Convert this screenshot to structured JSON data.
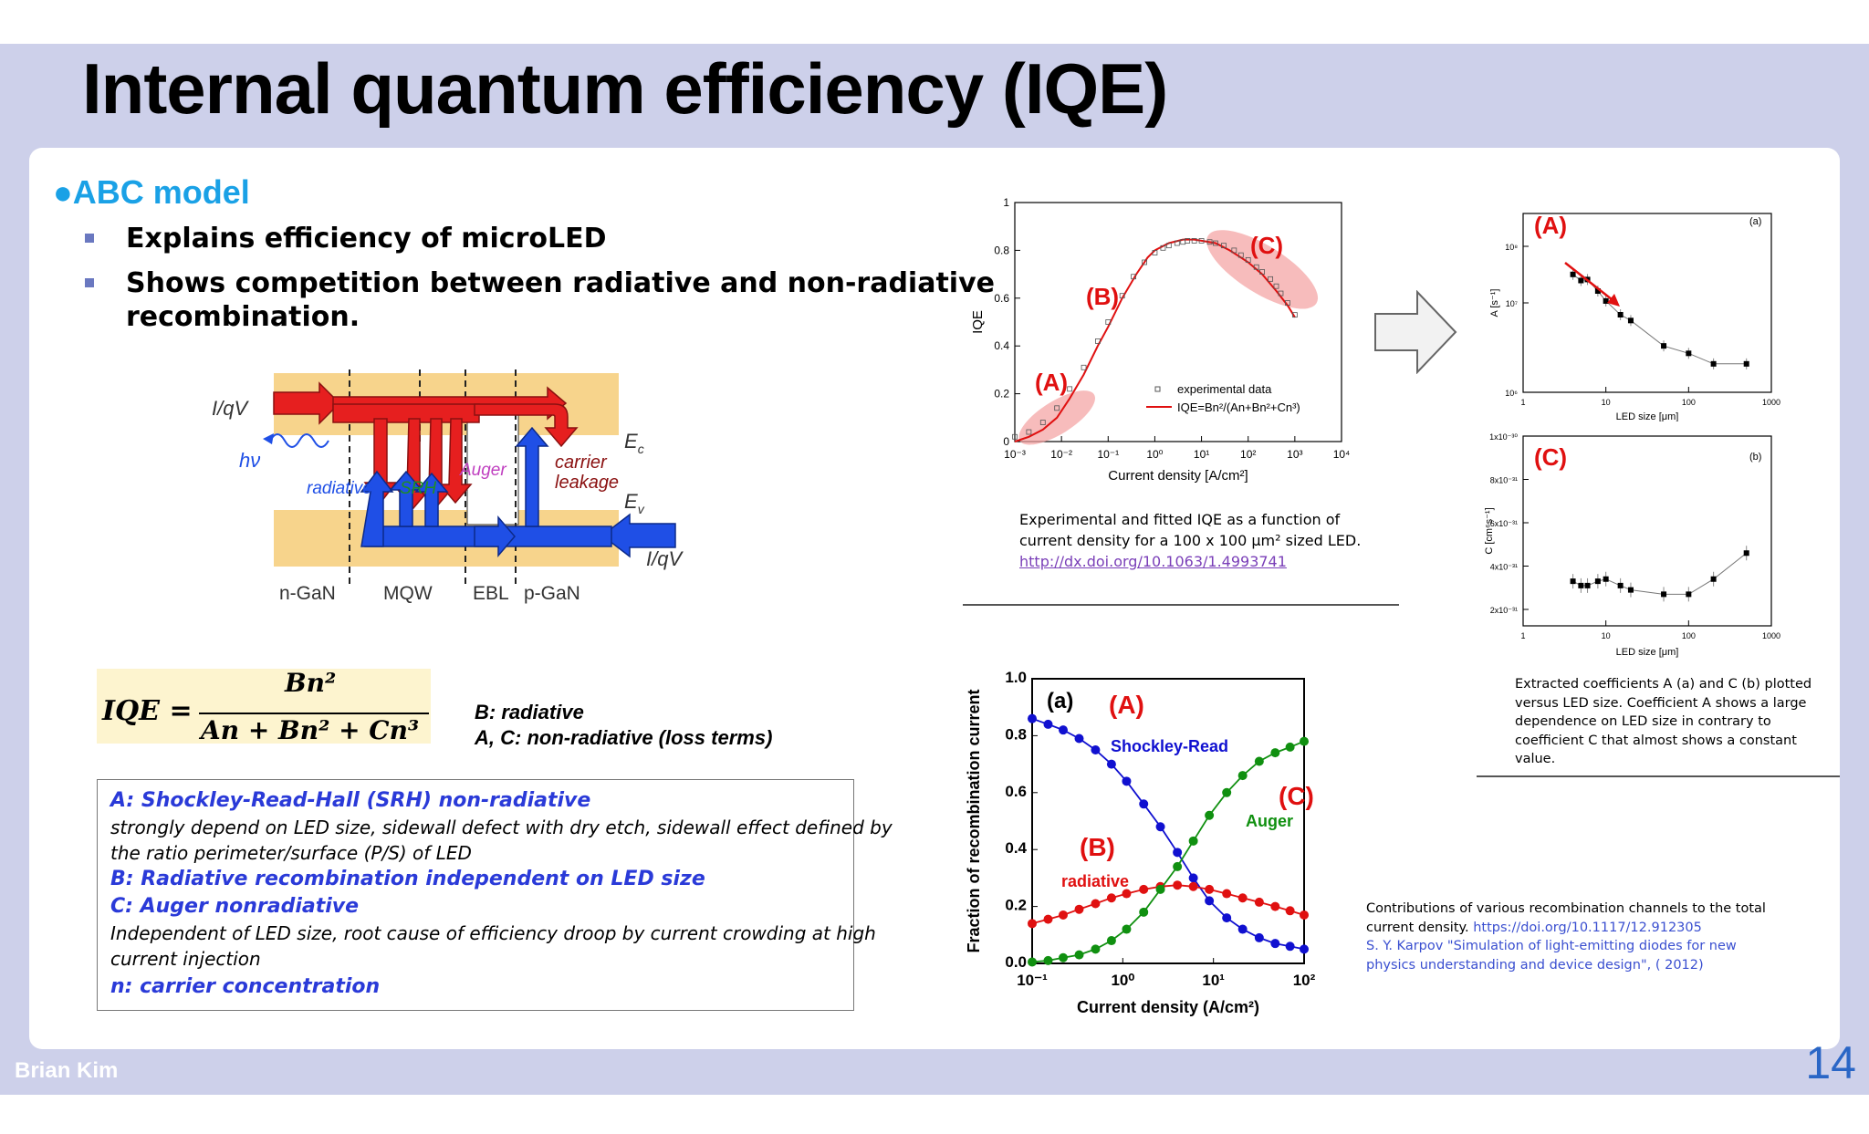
{
  "slide": {
    "title": "Internal quantum efficiency (IQE)",
    "author": "Brian Kim",
    "page_number": "14"
  },
  "left": {
    "heading": "●ABC model",
    "bullets": [
      "Explains efficiency of microLED",
      "Shows competition between radiative and non-radiative",
      "recombination."
    ],
    "diagram": {
      "left_input": "I/qV",
      "right_input": "I/qV",
      "photon": "hν",
      "labels": [
        "radiative",
        "SRH",
        "Auger",
        "carrier",
        "leakage"
      ],
      "ec": "E",
      "ec_sub": "c",
      "ev": "E",
      "ev_sub": "v",
      "regions": [
        "n-GaN",
        "MQW",
        "EBL",
        "p-GaN"
      ],
      "colors": {
        "conduction": "#e61f1f",
        "valence": "#1f4fe6",
        "band": "#f7d48c",
        "srh": "#1f8f1f",
        "auger": "#c040c0"
      }
    },
    "formula": {
      "lhs": "IQE =",
      "numerator": "Bn²",
      "denominator": "An + Bn² + Cn³"
    },
    "formula_legend": [
      "B: radiative",
      "A, C: non-radiative (loss terms)"
    ],
    "definitions": [
      {
        "text": "A: Shockley-Read-Hall (SRH) non-radiative",
        "bold": true
      },
      {
        "text": "strongly depend on LED size, sidewall defect with dry etch, sidewall effect defined by",
        "bold": false
      },
      {
        "text": "the ratio perimeter/surface (P/S) of LED",
        "bold": false
      },
      {
        "text": "B: Radiative recombination independent on LED size",
        "bold": true
      },
      {
        "text": "C: Auger nonradiative",
        "bold": true
      },
      {
        "text": "Independent of LED size, root cause of efficiency droop by current crowding at high",
        "bold": false
      },
      {
        "text": "current injection",
        "bold": false
      },
      {
        "text": "n: carrier concentration",
        "bold": true
      }
    ]
  },
  "captions": {
    "iqe": [
      "Experimental and fitted IQE as a function of",
      "current density for a 100 x 100 μm² sized LED."
    ],
    "iqe_link": "http://dx.doi.org/10.1063/1.4993741",
    "coeff": [
      "Extracted coefficients A (a) and C (b) plotted",
      "versus LED size. Coefficient A shows a large",
      "dependence on LED size in contrary to",
      "coefficient C that almost shows a constant",
      "value."
    ],
    "fraction": [
      "Contributions of various recombination channels to the total",
      "current density."
    ],
    "fraction_link": "https://doi.org/10.1117/12.912305",
    "fraction_ref": [
      "S. Y. Karpov \"Simulation of light-emitting diodes for new",
      "physics understanding and device design\", ( 2012)"
    ]
  },
  "chart_data": [
    {
      "type": "scatter",
      "id": "iqe",
      "xlabel": "Current density [A/cm²]",
      "ylabel": "IQE",
      "xscale": "log",
      "xlim": [
        0.001,
        10000
      ],
      "ylim": [
        0,
        1
      ],
      "xticks": [
        "10⁻³",
        "10⁻²",
        "10⁻¹",
        "10⁰",
        "10¹",
        "10²",
        "10³",
        "10⁴"
      ],
      "yticks": [
        "0",
        "0.2",
        "0.4",
        "0.6",
        "0.8",
        "1"
      ],
      "legend": [
        "experimental data",
        "IQE=Bn²/(An+Bn²+Cn³)"
      ],
      "region_labels": [
        "(A)",
        "(B)",
        "(C)"
      ],
      "series": [
        {
          "name": "experimental data",
          "x": [
            0.001,
            0.002,
            0.004,
            0.008,
            0.015,
            0.03,
            0.06,
            0.1,
            0.2,
            0.35,
            0.6,
            1,
            1.5,
            2,
            3,
            4,
            5,
            7,
            10,
            15,
            20,
            30,
            50,
            70,
            100,
            150,
            200,
            300,
            400,
            500,
            700,
            1000
          ],
          "y": [
            0.02,
            0.04,
            0.08,
            0.14,
            0.22,
            0.31,
            0.42,
            0.5,
            0.61,
            0.69,
            0.75,
            0.79,
            0.81,
            0.82,
            0.83,
            0.835,
            0.84,
            0.84,
            0.84,
            0.835,
            0.83,
            0.82,
            0.8,
            0.78,
            0.76,
            0.73,
            0.71,
            0.68,
            0.65,
            0.62,
            0.58,
            0.53
          ]
        },
        {
          "name": "IQE=Bn²/(An+Bn²+Cn³)",
          "x": [
            0.001,
            0.002,
            0.004,
            0.008,
            0.015,
            0.03,
            0.06,
            0.1,
            0.2,
            0.4,
            0.7,
            1,
            2,
            4,
            7,
            10,
            20,
            40,
            70,
            100,
            200,
            400,
            700,
            1000
          ],
          "y": [
            0.0,
            0.02,
            0.05,
            0.1,
            0.18,
            0.28,
            0.4,
            0.48,
            0.6,
            0.7,
            0.77,
            0.8,
            0.83,
            0.845,
            0.845,
            0.84,
            0.83,
            0.8,
            0.77,
            0.75,
            0.7,
            0.63,
            0.57,
            0.52
          ]
        }
      ],
      "colors": {
        "fit": "#e01010",
        "highlight": "#f3a0a0"
      }
    },
    {
      "type": "scatter",
      "id": "coeff_a",
      "panel": "(a)",
      "region_label": "(A)",
      "xlabel": "LED size [μm]",
      "ylabel": "A [s⁻¹]",
      "xscale": "log",
      "yscale": "log",
      "xlim": [
        1,
        1000
      ],
      "ylim": [
        1000000,
        1000000000
      ],
      "xticks": [
        "1",
        "10",
        "100",
        "1000"
      ],
      "yticks": [
        "10⁶",
        "10⁷",
        "10⁸"
      ],
      "series": [
        {
          "x": [
            4,
            5,
            6,
            8,
            10,
            15,
            20,
            50,
            100,
            200,
            500
          ],
          "y": [
            95000000,
            75000000,
            78000000,
            50000000,
            34000000,
            20000000,
            16000000,
            6000000,
            4500000,
            3000000,
            3000000
          ]
        }
      ]
    },
    {
      "type": "scatter",
      "id": "coeff_c",
      "panel": "(b)",
      "region_label": "(C)",
      "xlabel": "LED size [μm]",
      "ylabel": "C [cm⁶s⁻¹]",
      "xscale": "log",
      "xlim": [
        1,
        1000
      ],
      "ylim": [
        1e-31,
        1e-30
      ],
      "xticks": [
        "1",
        "10",
        "100",
        "1000"
      ],
      "yticks": [
        "1x10⁻³⁰",
        "8x10⁻³¹",
        "6x10⁻³¹",
        "4x10⁻³¹",
        "2x10⁻³¹"
      ],
      "series": [
        {
          "x": [
            4,
            5,
            6,
            8,
            10,
            15,
            20,
            50,
            100,
            200,
            500
          ],
          "y": [
            3.3e-31,
            3.1e-31,
            3.1e-31,
            3.3e-31,
            3.4e-31,
            3.1e-31,
            2.9e-31,
            2.7e-31,
            2.7e-31,
            3.4e-31,
            4.6e-31
          ]
        }
      ]
    },
    {
      "type": "line",
      "id": "fraction",
      "panel": "(a)",
      "xlabel": "Current density (A/cm²)",
      "ylabel": "Fraction of recombination current",
      "xscale": "log",
      "xlim": [
        0.1,
        100
      ],
      "ylim": [
        0,
        1
      ],
      "xticks": [
        "10⁻¹",
        "10⁰",
        "10¹",
        "10²"
      ],
      "yticks": [
        "0.0",
        "0.2",
        "0.4",
        "0.6",
        "0.8",
        "1.0"
      ],
      "series": [
        {
          "name": "Shockley-Read",
          "region_label": "(A)",
          "color": "#1010d0",
          "x": [
            0.1,
            0.15,
            0.22,
            0.33,
            0.5,
            0.75,
            1.1,
            1.7,
            2.6,
            4,
            6,
            9,
            14,
            21,
            32,
            48,
            70,
            100
          ],
          "y": [
            0.86,
            0.84,
            0.82,
            0.79,
            0.75,
            0.7,
            0.64,
            0.56,
            0.48,
            0.39,
            0.3,
            0.22,
            0.16,
            0.12,
            0.09,
            0.07,
            0.06,
            0.05
          ]
        },
        {
          "name": "radiative",
          "region_label": "(B)",
          "color": "#e01010",
          "x": [
            0.1,
            0.15,
            0.22,
            0.33,
            0.5,
            0.75,
            1.1,
            1.7,
            2.6,
            4,
            6,
            9,
            14,
            21,
            32,
            48,
            70,
            100
          ],
          "y": [
            0.14,
            0.155,
            0.17,
            0.19,
            0.21,
            0.23,
            0.245,
            0.26,
            0.27,
            0.275,
            0.27,
            0.26,
            0.245,
            0.23,
            0.215,
            0.2,
            0.185,
            0.17
          ]
        },
        {
          "name": "Auger",
          "region_label": "(C)",
          "color": "#109010",
          "x": [
            0.1,
            0.15,
            0.22,
            0.33,
            0.5,
            0.75,
            1.1,
            1.7,
            2.6,
            4,
            6,
            9,
            14,
            21,
            32,
            48,
            70,
            100
          ],
          "y": [
            0.005,
            0.01,
            0.02,
            0.03,
            0.05,
            0.08,
            0.12,
            0.18,
            0.26,
            0.34,
            0.43,
            0.52,
            0.6,
            0.66,
            0.71,
            0.74,
            0.76,
            0.78
          ]
        }
      ]
    }
  ]
}
